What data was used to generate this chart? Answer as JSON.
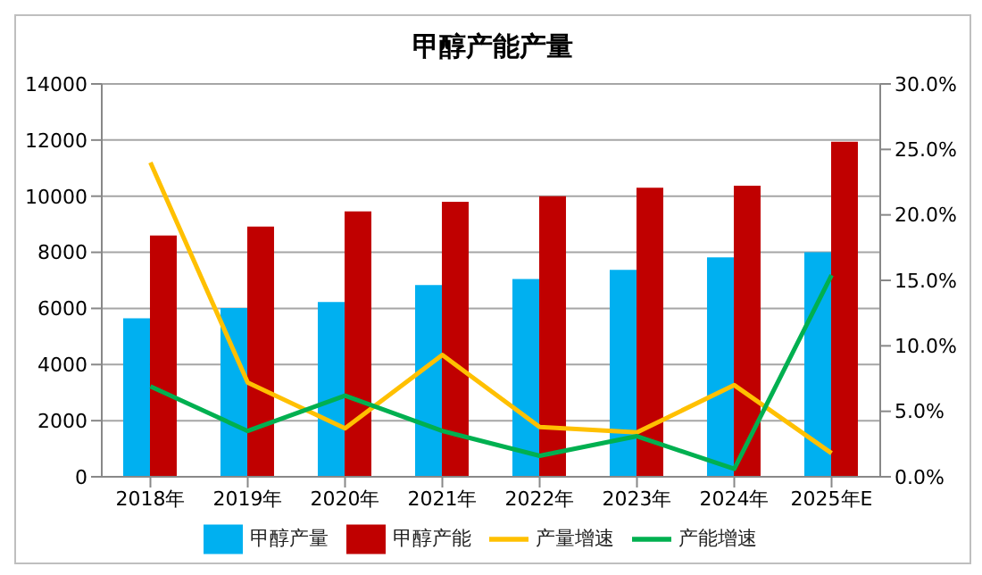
{
  "chart_data": {
    "type": "bar",
    "title": "甲醇产能产量",
    "categories": [
      "2018年",
      "2019年",
      "2020年",
      "2021年",
      "2022年",
      "2023年",
      "2024年",
      "2025年E"
    ],
    "series": [
      {
        "name": "甲醇产量",
        "color": "#00b0f0",
        "values": [
          5650,
          6010,
          6230,
          6830,
          7050,
          7370,
          7820,
          8000
        ]
      },
      {
        "name": "甲醇产能",
        "color": "#c00000",
        "values": [
          8600,
          8920,
          9460,
          9800,
          10000,
          10300,
          10370,
          11940
        ]
      },
      {
        "name": "产量增速",
        "type": "line",
        "axis": "y2",
        "color": "#ffc000",
        "values": [
          24.0,
          7.2,
          3.7,
          9.3,
          3.8,
          3.4,
          7.0,
          1.8
        ]
      },
      {
        "name": "产能增速",
        "type": "line",
        "axis": "y2",
        "color": "#00b050",
        "values": [
          6.9,
          3.5,
          6.2,
          3.5,
          1.6,
          3.1,
          0.6,
          15.4
        ]
      }
    ],
    "ylim": [
      0,
      14000
    ],
    "yticks": [
      0,
      2000,
      4000,
      6000,
      8000,
      10000,
      12000,
      14000
    ],
    "y2lim": [
      0,
      30
    ],
    "y2ticks": [
      {
        "value": 0,
        "label": "0.0%"
      },
      {
        "value": 5,
        "label": "5.0%"
      },
      {
        "value": 10,
        "label": "10.0%"
      },
      {
        "value": 15,
        "label": "15.0%"
      },
      {
        "value": 20,
        "label": "20.0%"
      },
      {
        "value": 25,
        "label": "25.0%"
      },
      {
        "value": 30,
        "label": "30.0%"
      }
    ],
    "grid": "y",
    "legend": "bottom",
    "marker": "none",
    "line_style": "solid"
  }
}
